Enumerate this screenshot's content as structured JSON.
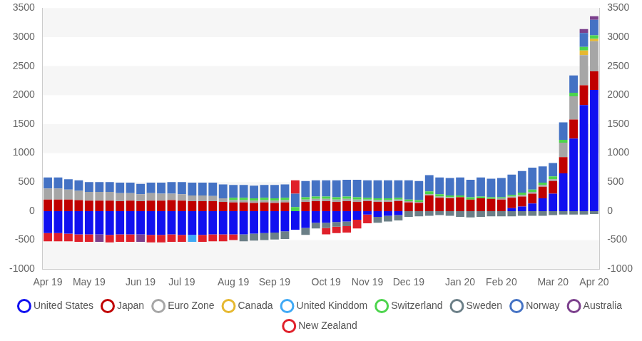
{
  "chart_data": {
    "type": "bar",
    "stacked": true,
    "grid": true,
    "legend": "bottom",
    "categories": [
      "Apr 19",
      null,
      null,
      null,
      "May 19",
      null,
      null,
      null,
      null,
      "Jun 19",
      null,
      null,
      null,
      "Jul 19",
      null,
      null,
      null,
      null,
      "Aug 19",
      null,
      null,
      null,
      "Sep 19",
      null,
      null,
      null,
      null,
      "Oct 19",
      null,
      null,
      null,
      "Nov 19",
      null,
      null,
      null,
      "Dec 19",
      null,
      null,
      null,
      null,
      "Jan 20",
      null,
      null,
      null,
      "Feb 20",
      null,
      null,
      null,
      null,
      "Mar 20",
      null,
      null,
      null,
      "Apr 20"
    ],
    "ylim": [
      -1000,
      3500
    ],
    "yticks": [
      -1000,
      -500,
      0,
      500,
      1000,
      1500,
      2000,
      2500,
      3000,
      3500
    ],
    "y2lim": [
      -1000,
      3500
    ],
    "y2ticks": [
      -1000,
      -500,
      0,
      500,
      1000,
      1500,
      2000,
      2500,
      3000,
      3500
    ],
    "series": [
      {
        "name": "United States",
        "color": "#1010f0",
        "values": [
          -380,
          -380,
          -390,
          -400,
          -400,
          -400,
          -410,
          -400,
          -400,
          -400,
          -410,
          -410,
          -400,
          -410,
          -410,
          -410,
          -400,
          -400,
          -400,
          -400,
          -390,
          -380,
          -370,
          -350,
          -320,
          -290,
          -200,
          -200,
          -190,
          -180,
          -150,
          -60,
          -100,
          -80,
          -70,
          0,
          0,
          0,
          0,
          0,
          0,
          0,
          0,
          0,
          0,
          50,
          80,
          130,
          220,
          300,
          650,
          1250,
          1830,
          2090
        ]
      },
      {
        "name": "Japan",
        "color": "#c00000",
        "values": [
          200,
          200,
          200,
          190,
          180,
          180,
          180,
          170,
          180,
          170,
          180,
          180,
          190,
          180,
          170,
          170,
          170,
          160,
          150,
          150,
          140,
          150,
          140,
          150,
          0,
          160,
          170,
          170,
          160,
          170,
          160,
          170,
          160,
          160,
          170,
          150,
          140,
          270,
          230,
          220,
          240,
          200,
          220,
          210,
          200,
          180,
          170,
          170,
          200,
          220,
          280,
          330,
          340,
          320
        ]
      },
      {
        "name": "Euro Zone",
        "color": "#a6a6a6",
        "values": [
          190,
          190,
          170,
          160,
          150,
          150,
          150,
          140,
          130,
          120,
          130,
          120,
          110,
          110,
          100,
          100,
          90,
          60,
          40,
          40,
          40,
          40,
          40,
          40,
          0,
          40,
          40,
          40,
          40,
          40,
          40,
          30,
          30,
          30,
          30,
          20,
          20,
          20,
          20,
          20,
          0,
          0,
          0,
          0,
          20,
          20,
          30,
          30,
          30,
          30,
          250,
          400,
          520,
          520
        ]
      },
      {
        "name": "Canada",
        "color": "#e6b830",
        "values": [
          0,
          0,
          0,
          0,
          0,
          0,
          0,
          0,
          0,
          0,
          0,
          0,
          0,
          0,
          0,
          0,
          0,
          0,
          0,
          0,
          0,
          0,
          0,
          0,
          0,
          0,
          0,
          0,
          0,
          0,
          0,
          0,
          0,
          0,
          0,
          0,
          0,
          0,
          0,
          0,
          0,
          0,
          0,
          0,
          0,
          0,
          0,
          0,
          0,
          0,
          0,
          0,
          80,
          40
        ]
      },
      {
        "name": "United Kinddom",
        "color": "#3fa9f5",
        "values": [
          0,
          0,
          0,
          0,
          0,
          0,
          0,
          0,
          0,
          0,
          0,
          0,
          0,
          0,
          -120,
          0,
          0,
          0,
          0,
          0,
          0,
          0,
          0,
          0,
          0,
          0,
          0,
          0,
          0,
          0,
          0,
          0,
          0,
          0,
          0,
          0,
          0,
          0,
          0,
          0,
          0,
          0,
          0,
          0,
          0,
          0,
          0,
          0,
          0,
          0,
          0,
          0,
          0,
          0
        ]
      },
      {
        "name": "Switzerland",
        "color": "#4cd44c",
        "values": [
          0,
          0,
          0,
          0,
          0,
          0,
          0,
          0,
          0,
          0,
          0,
          0,
          0,
          0,
          0,
          0,
          0,
          0,
          40,
          40,
          40,
          40,
          40,
          40,
          70,
          40,
          40,
          40,
          40,
          40,
          40,
          30,
          30,
          30,
          30,
          30,
          30,
          50,
          40,
          30,
          30,
          40,
          30,
          30,
          20,
          30,
          40,
          40,
          40,
          50,
          50,
          60,
          60,
          60
        ]
      },
      {
        "name": "Sweden",
        "color": "#6b7f87",
        "values": [
          0,
          0,
          0,
          0,
          0,
          0,
          0,
          0,
          0,
          0,
          0,
          0,
          0,
          0,
          0,
          0,
          0,
          0,
          0,
          -120,
          -120,
          -120,
          -120,
          -130,
          0,
          -120,
          -100,
          -90,
          -80,
          -80,
          0,
          0,
          -100,
          -100,
          -90,
          -100,
          -90,
          -80,
          -70,
          -80,
          -100,
          -110,
          -100,
          -90,
          -90,
          -90,
          -80,
          -80,
          -80,
          -70,
          -60,
          -60,
          -60,
          -50
        ]
      },
      {
        "name": "Norway",
        "color": "#4472c4",
        "values": [
          190,
          190,
          180,
          180,
          170,
          170,
          170,
          180,
          180,
          180,
          180,
          190,
          200,
          210,
          220,
          220,
          230,
          240,
          220,
          220,
          220,
          220,
          230,
          230,
          230,
          280,
          280,
          280,
          290,
          290,
          300,
          300,
          310,
          310,
          300,
          330,
          330,
          280,
          290,
          300,
          310,
          300,
          330,
          320,
          330,
          350,
          370,
          380,
          280,
          230,
          300,
          300,
          240,
          270
        ]
      },
      {
        "name": "Australia",
        "color": "#7b3f8c",
        "values": [
          0,
          0,
          0,
          0,
          0,
          -130,
          0,
          0,
          0,
          -130,
          0,
          0,
          0,
          0,
          0,
          0,
          0,
          0,
          0,
          0,
          0,
          0,
          0,
          0,
          0,
          0,
          0,
          0,
          0,
          0,
          0,
          0,
          0,
          0,
          0,
          0,
          0,
          0,
          0,
          0,
          0,
          0,
          0,
          0,
          0,
          0,
          0,
          0,
          0,
          0,
          0,
          0,
          70,
          60
        ]
      },
      {
        "name": "New Zealand",
        "color": "#e0202a",
        "values": [
          -140,
          -140,
          -130,
          -130,
          -130,
          0,
          -130,
          -130,
          -130,
          0,
          -130,
          -130,
          -130,
          -120,
          0,
          -120,
          -120,
          -120,
          -100,
          0,
          0,
          0,
          0,
          0,
          230,
          0,
          0,
          -110,
          -110,
          -110,
          -150,
          -150,
          0,
          0,
          0,
          0,
          0,
          0,
          0,
          0,
          0,
          0,
          0,
          0,
          0,
          0,
          0,
          0,
          0,
          0,
          0,
          0,
          0,
          0
        ]
      }
    ]
  }
}
